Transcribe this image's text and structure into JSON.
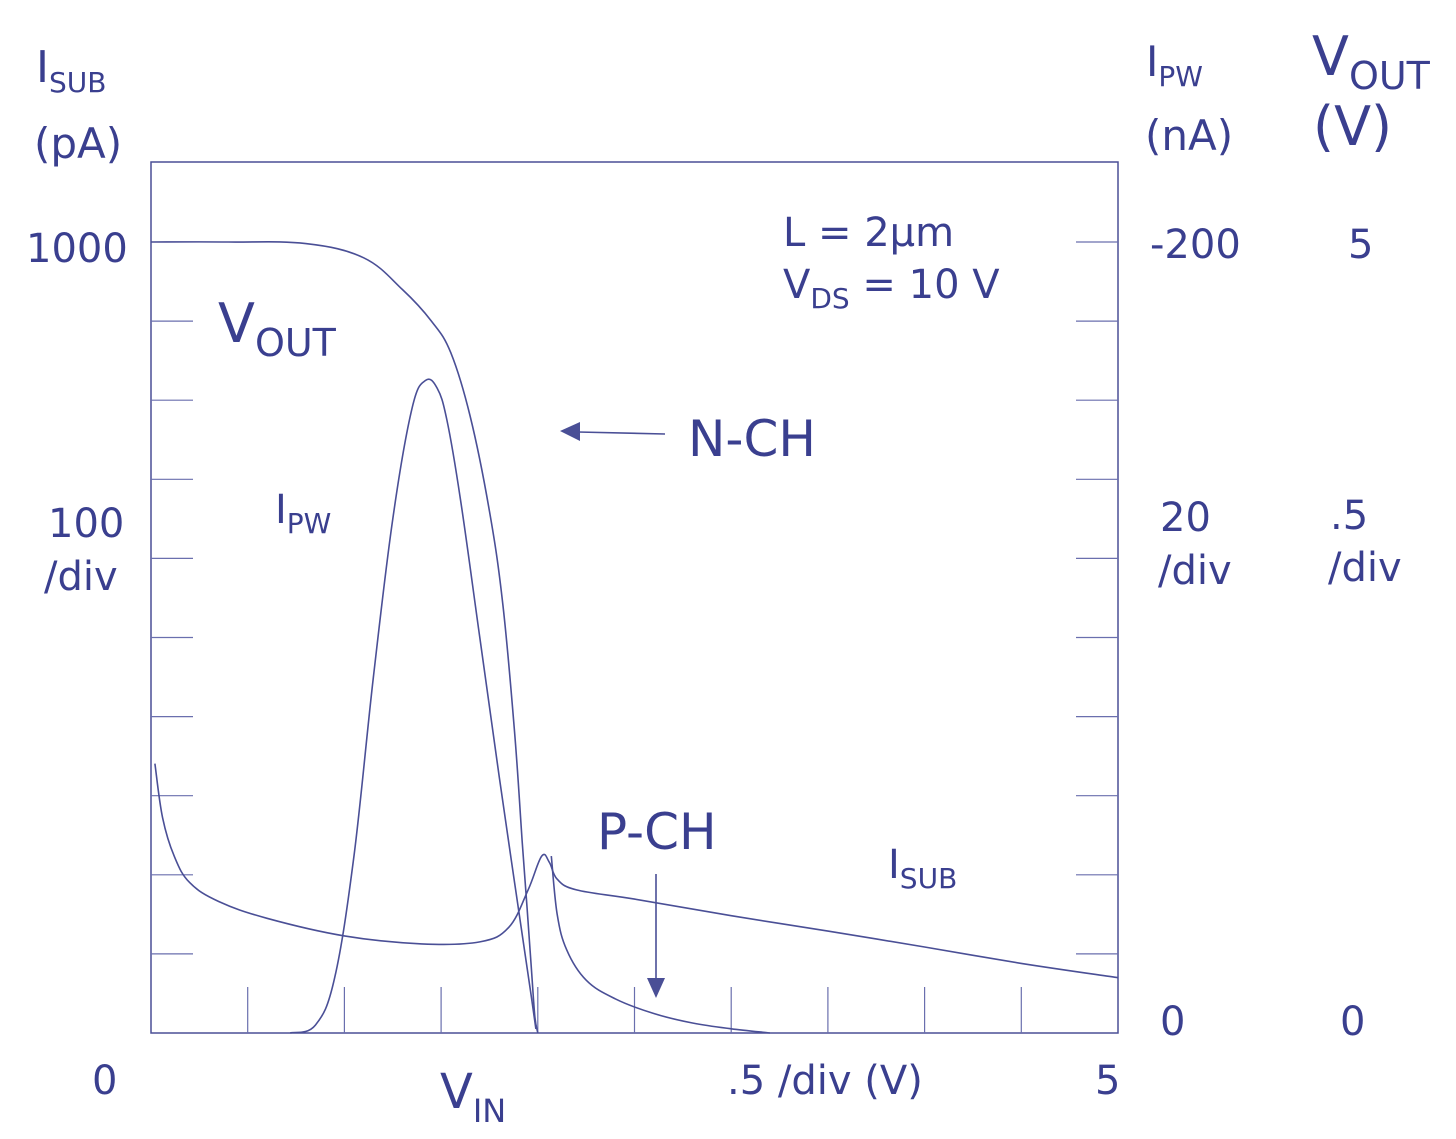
{
  "chart_data": {
    "type": "line",
    "title": "",
    "colors": {
      "ink": "#3a3f8f",
      "line": "#4a4f96"
    },
    "grid": false,
    "x_axis": {
      "label": "V",
      "label_sub": "IN",
      "range": [
        0,
        5
      ],
      "tick_left": "0",
      "tick_right": "5",
      "scale_label": ".5 /div (V)",
      "div": 0.5
    },
    "left_axis": {
      "label": "I",
      "label_sub": "SUB",
      "unit": "(pA)",
      "scale": "log",
      "range": [
        10,
        1000
      ],
      "tick_top": "1000",
      "div_line1": "100",
      "div_line2": "/div",
      "tick_bottom": "0"
    },
    "right_axis_1": {
      "label": "I",
      "label_sub": "PW",
      "unit": "(nA)",
      "range": [
        0,
        -200
      ],
      "tick_top": "-200",
      "div_line1": "20",
      "div_line2": "/div",
      "tick_bottom": "0"
    },
    "right_axis_2": {
      "label": "V",
      "label_sub": "OUT",
      "unit": "(V)",
      "range": [
        0,
        5
      ],
      "tick_top": "5",
      "div_line1": ".5",
      "div_line2": "/div",
      "tick_bottom": "0"
    },
    "annotations": {
      "params_line1": "L = 2μm",
      "params_line2_main": "V",
      "params_line2_sub": "DS",
      "params_line2_rest": " = 10 V",
      "nch": "N-CH",
      "pch": "P-CH"
    },
    "series": [
      {
        "name": "V",
        "name_sub": "OUT",
        "axis": "right_axis_2",
        "x": [
          0,
          0.4,
          0.8,
          1.1,
          1.3,
          1.45,
          1.55,
          1.65,
          1.75,
          1.82,
          1.88,
          1.92,
          1.95,
          1.97,
          1.985,
          2.0
        ],
        "values": [
          5.0,
          5.0,
          4.99,
          4.9,
          4.7,
          4.5,
          4.3,
          3.9,
          3.3,
          2.7,
          1.9,
          1.2,
          0.7,
          0.35,
          0.1,
          0.0
        ]
      },
      {
        "name": "I",
        "name_sub": "PW",
        "axis": "right_axis_1",
        "x": [
          0.72,
          0.85,
          0.95,
          1.05,
          1.15,
          1.25,
          1.35,
          1.42,
          1.48,
          1.53,
          1.6,
          1.7,
          1.8,
          1.88,
          1.94,
          1.97,
          1.99
        ],
        "values": [
          0,
          -2,
          -14,
          -45,
          -90,
          -130,
          -158,
          -165,
          -163,
          -155,
          -135,
          -100,
          -65,
          -38,
          -18,
          -8,
          -1
        ]
      },
      {
        "name": "I",
        "name_sub": "SUB",
        "axis": "left_axis",
        "x": [
          0.02,
          0.06,
          0.12,
          0.2,
          0.35,
          0.6,
          1.0,
          1.4,
          1.7,
          1.85,
          1.95,
          2.02,
          2.06,
          2.1,
          2.2,
          2.5,
          3.0,
          3.5,
          4.0,
          4.5,
          5.0
        ],
        "values": [
          48,
          35,
          28,
          24,
          21.5,
          19.5,
          17.6,
          16.8,
          17.0,
          18.5,
          23,
          28,
          27,
          24.5,
          23,
          21.8,
          19.8,
          18.1,
          16.5,
          15.0,
          13.8
        ]
      },
      {
        "name": "",
        "axis": "left_axis",
        "note": "P-CH substrate current",
        "x": [
          2.07,
          2.1,
          2.15,
          2.25,
          2.4,
          2.6,
          2.8,
          3.0,
          3.2
        ],
        "values": [
          28,
          20,
          16.2,
          13.6,
          12.2,
          11.2,
          10.6,
          10.25,
          10.0
        ]
      }
    ]
  }
}
